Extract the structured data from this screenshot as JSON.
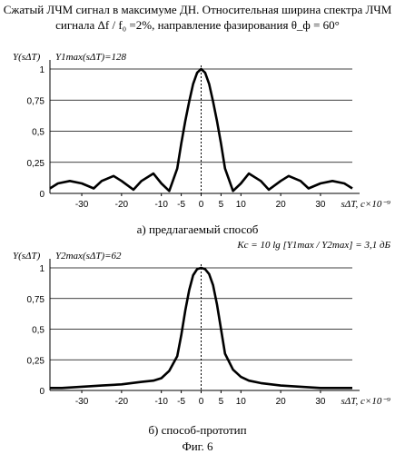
{
  "header": {
    "line1": "Сжатый ЛЧМ сигнал в максимуме ДН. Относительная ширина спектра ЛЧМ",
    "line2": "сигнала Δf / f₀ =2%, направление фазирования θ_ф = 60°"
  },
  "chart_data": [
    {
      "type": "line",
      "ylabel": "Y(sΔT)",
      "annotation": "Y1max(sΔT)=128",
      "xlabel": "sΔT, c×10⁻⁹",
      "caption": "а) предлагаемый способ",
      "x_ticks": [
        "-30",
        "-20",
        "-10",
        "-5",
        "0",
        "5",
        "10",
        "20",
        "30"
      ],
      "y_ticks": [
        "0",
        "0,25",
        "0,5",
        "0,75",
        "1"
      ],
      "xlim": [
        -38,
        38
      ],
      "ylim": [
        0,
        1
      ],
      "x": [
        -38,
        -36,
        -33,
        -30,
        -27,
        -25,
        -22,
        -20,
        -17,
        -15,
        -12,
        -10,
        -8,
        -6,
        -5,
        -4,
        -3,
        -2,
        -1,
        0,
        1,
        2,
        3,
        4,
        5,
        6,
        8,
        10,
        12,
        15,
        17,
        20,
        22,
        25,
        27,
        30,
        33,
        36,
        38
      ],
      "values": [
        0.04,
        0.08,
        0.1,
        0.08,
        0.04,
        0.1,
        0.14,
        0.1,
        0.03,
        0.1,
        0.16,
        0.08,
        0.02,
        0.2,
        0.4,
        0.58,
        0.74,
        0.88,
        0.97,
        1.0,
        0.97,
        0.88,
        0.74,
        0.58,
        0.4,
        0.2,
        0.02,
        0.08,
        0.16,
        0.1,
        0.03,
        0.1,
        0.14,
        0.1,
        0.04,
        0.08,
        0.1,
        0.08,
        0.04
      ]
    },
    {
      "type": "line",
      "ylabel": "Y(sΔT)",
      "annotation": "Y2max(sΔT)=62",
      "formula": "Kс = 10 lg [Y1max / Y2max] = 3,1 дБ",
      "xlabel": "sΔT, c×10⁻⁹",
      "caption": "б) способ-прототип",
      "x_ticks": [
        "-30",
        "-20",
        "-10",
        "-5",
        "0",
        "5",
        "10",
        "20",
        "30"
      ],
      "y_ticks": [
        "0",
        "0,25",
        "0,5",
        "0,75",
        "1"
      ],
      "xlim": [
        -38,
        38
      ],
      "ylim": [
        0,
        1
      ],
      "x": [
        -38,
        -35,
        -30,
        -25,
        -20,
        -15,
        -12,
        -10,
        -8,
        -6,
        -5,
        -4,
        -3,
        -2,
        -1,
        0,
        1,
        2,
        3,
        4,
        5,
        6,
        8,
        10,
        12,
        15,
        20,
        25,
        30,
        35,
        38
      ],
      "values": [
        0.02,
        0.02,
        0.03,
        0.04,
        0.05,
        0.07,
        0.08,
        0.1,
        0.16,
        0.28,
        0.45,
        0.65,
        0.82,
        0.94,
        0.99,
        1.0,
        0.99,
        0.95,
        0.86,
        0.7,
        0.5,
        0.3,
        0.17,
        0.11,
        0.08,
        0.06,
        0.04,
        0.03,
        0.02,
        0.02,
        0.02
      ]
    }
  ],
  "figure_caption": "Фиг. 6"
}
